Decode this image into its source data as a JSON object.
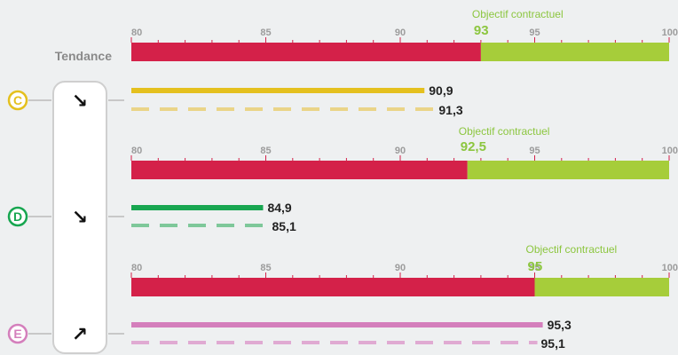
{
  "trend_label": "Tendance",
  "colors": {
    "below_target": "#d42149",
    "above_target": "#a6cd3a",
    "objective_text": "#8cc63f",
    "tick": "#9c9c9c"
  },
  "chart_data": {
    "type": "bar",
    "axis": {
      "min": 80,
      "max": 100,
      "tick_labels": [
        "80",
        "85",
        "90",
        "95",
        "100"
      ],
      "minor_step": 1
    },
    "objective_label": "Objectif contractuel",
    "indicators": [
      {
        "letter": "C",
        "color": "#e4c01e",
        "light_color": "#ead488",
        "objective": 93,
        "objective_text": "93",
        "current": 90.9,
        "current_text": "90,9",
        "previous": 91.3,
        "previous_text": "91,3",
        "trend": "down",
        "trend_glyph": "↘"
      },
      {
        "letter": "D",
        "color": "#17a650",
        "light_color": "#7ec89a",
        "objective": 92.5,
        "objective_text": "92,5",
        "current": 84.9,
        "current_text": "84,9",
        "previous": 85.1,
        "previous_text": "85,1",
        "trend": "down",
        "trend_glyph": "↘"
      },
      {
        "letter": "E",
        "color": "#d47fbc",
        "light_color": "#e0aad2",
        "objective": 95,
        "objective_text": "95",
        "current": 95.3,
        "current_text": "95,3",
        "previous": 95.1,
        "previous_text": "95,1",
        "trend": "up",
        "trend_glyph": "↗"
      }
    ]
  }
}
